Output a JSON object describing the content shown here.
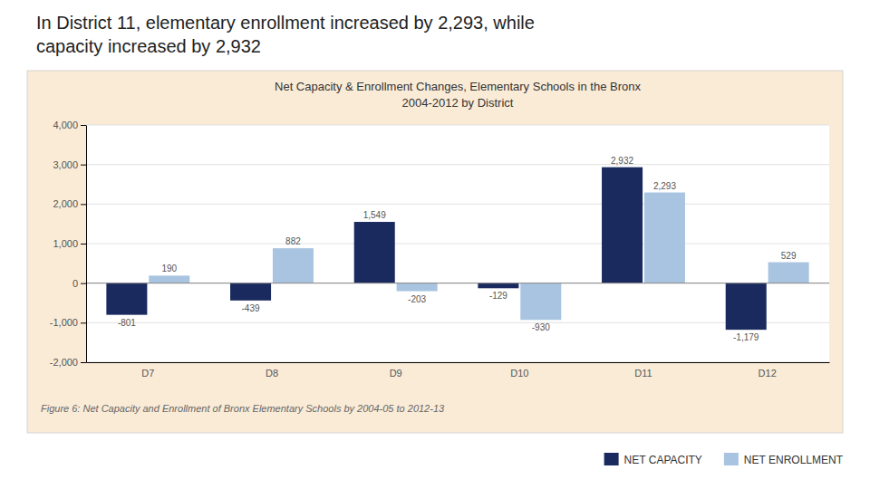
{
  "chart_data": {
    "type": "bar",
    "title": "Net Capacity & Enrollment Changes, Elementary Schools in the Bronx",
    "subtitle": "2004-2012 by District",
    "annotations": [
      "In District 11, elementary enrollment increased by 2,293, while",
      "capacity increased by 2,932",
      "Figure 6: Net Capacity and Enrollment of Bronx Elementary Schools by 2004-05 to 2012-13"
    ],
    "categories": [
      "D7",
      "D8",
      "D9",
      "D10",
      "D11",
      "D12"
    ],
    "series": [
      {
        "name": "NET CAPACITY",
        "color": "#1a2a5e",
        "values": [
          -801,
          -439,
          1549,
          -129,
          2932,
          -1179
        ],
        "value_labels": [
          "-801",
          "-439",
          "1,549",
          "-129",
          "2,932",
          "-1,179"
        ]
      },
      {
        "name": "NET ENROLLMENT",
        "color": "#a8c4e0",
        "values": [
          190,
          882,
          -203,
          -930,
          2293,
          529
        ],
        "value_labels": [
          "190",
          "882",
          "-203",
          "-930",
          "2,293",
          "529"
        ]
      }
    ],
    "ylim": [
      -2000,
      4000
    ],
    "yticks": [
      {
        "value": -2000,
        "label": "-2,000"
      },
      {
        "value": -1000,
        "label": "-1,000"
      },
      0,
      {
        "value": 1000,
        "label": "1,000"
      },
      {
        "value": 2000,
        "label": "2,000"
      },
      {
        "value": 3000,
        "label": "3,000"
      },
      {
        "value": 4000,
        "label": "4,000"
      }
    ],
    "grid": true,
    "data_labels": true,
    "legend": "bottom"
  }
}
